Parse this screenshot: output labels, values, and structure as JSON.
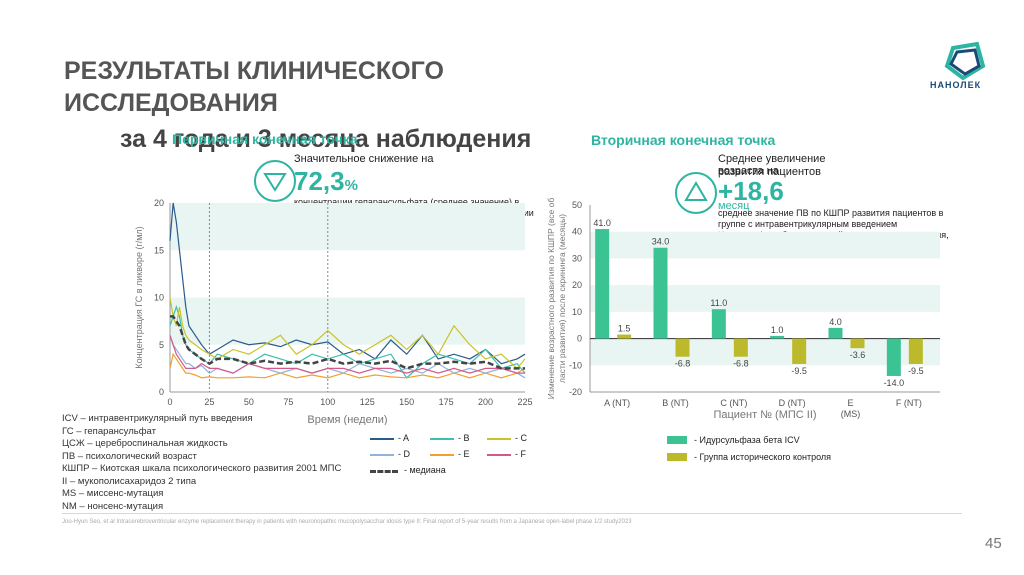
{
  "slide": {
    "title_line1": "РЕЗУЛЬТАТЫ КЛИНИЧЕСКОГО",
    "title_line2": "ИССЛЕДОВАНИЯ",
    "title_line3": "за 4 года и 3 месяца наблюдения",
    "logo_text": "НАНОЛЕК",
    "page_number": "45",
    "footer": "Joo-Hyun Seo, et al Intracerebroventricular enzyme replacement therapy in patients with neuronopathic mucopolysacchar idosis type II: Final report of 5-year results from a Japanese open-label phase 1/2 study2023"
  },
  "primary": {
    "heading": "Первичная конечная точка",
    "subhead": "Значительное снижение на",
    "value": "72,3",
    "unit": "%",
    "description": "концентрации гепарансульфата (среднее значение) в цереброспинальной жидкости от исходной концентрации у всех пациентов на фоне интравентрикулярного введения препарата Идурсульфаза бета"
  },
  "secondary": {
    "heading": "Вторичная конечная точка",
    "subhead": "Среднее увеличение возраста на",
    "subhead2": "развития пациентов",
    "value": "+18,6",
    "unit": "месяц",
    "description": "среднее значение ПВ по КШПР развития пациентов в группе с интравентрикулярным введением Идурсульфаза бета и группой исторического контроля, которые получали Идурсульфазу только в/в"
  },
  "abbreviations": [
    "ICV – интравентрикулярный путь введения",
    "ГС – гепарансульфат",
    "ЦСЖ – цереброспинальная жидкость",
    "ПВ – психологический возраст",
    "КШПР – Киотская шкала психологического развития 2001 МПС",
    "II – мукополисахаридоз 2 типа",
    "MS – миссенс-мутация",
    "NM – нонсенс-мутация"
  ],
  "line_legend": [
    {
      "label": "- A",
      "color": "#2b5a8c",
      "dash": false
    },
    {
      "label": "- B",
      "color": "#3bbfae",
      "dash": false
    },
    {
      "label": "- C",
      "color": "#c9c32a",
      "dash": false
    },
    {
      "label": "- D",
      "color": "#8fb3d9",
      "dash": false
    },
    {
      "label": "- E",
      "color": "#f0a030",
      "dash": false
    },
    {
      "label": "- F",
      "color": "#d25a8a",
      "dash": false
    },
    {
      "label": "- медиана",
      "color": "#444444",
      "dash": true
    }
  ],
  "bar_legend": [
    {
      "label": "- Идурсульфаза бета ICV",
      "color": "#3cc394"
    },
    {
      "label": "- Группа исторического контроля",
      "color": "#bcb92a"
    }
  ],
  "chart_data": [
    {
      "type": "line",
      "xlabel": "Время (недели)",
      "ylabel": "Концентрация ГС в ликворе (г/мл)",
      "xlim": [
        0,
        225
      ],
      "ylim": [
        0,
        20
      ],
      "xticks": [
        0,
        25,
        50,
        75,
        100,
        125,
        150,
        175,
        200,
        225
      ],
      "yticks": [
        0,
        5,
        10,
        15,
        20
      ],
      "x": [
        0,
        2,
        4,
        6,
        8,
        10,
        12,
        16,
        20,
        25,
        30,
        40,
        50,
        60,
        70,
        80,
        90,
        100,
        110,
        120,
        130,
        140,
        150,
        160,
        170,
        180,
        190,
        200,
        210,
        220,
        225
      ],
      "series": [
        {
          "name": "A",
          "color": "#2b5a8c",
          "values": [
            16,
            20,
            18,
            15,
            12,
            9,
            7,
            6,
            5,
            4,
            4.5,
            5.5,
            5,
            5.2,
            4.8,
            5.5,
            5,
            5.3,
            4,
            4.5,
            3.5,
            5.5,
            4,
            6,
            3.5,
            4,
            3.5,
            4.5,
            3,
            3.5,
            4
          ]
        },
        {
          "name": "B",
          "color": "#3bbfae",
          "values": [
            7,
            8,
            9,
            8,
            6,
            5,
            4.5,
            4,
            3.5,
            3,
            4,
            3.5,
            3,
            4,
            3.5,
            3,
            4,
            3.5,
            4,
            3,
            3.5,
            4,
            1.5,
            3,
            4,
            3.5,
            3,
            4.5,
            2.5,
            3,
            2
          ]
        },
        {
          "name": "C",
          "color": "#c9c32a",
          "values": [
            10,
            8,
            7,
            9,
            7,
            6,
            5.5,
            5,
            4.5,
            4,
            3.5,
            4.5,
            4,
            5,
            6,
            4,
            5,
            6.5,
            5,
            4,
            5,
            6,
            4.5,
            6,
            4,
            7,
            5,
            3.5,
            4,
            2.5,
            3.5
          ]
        },
        {
          "name": "D",
          "color": "#8fb3d9",
          "values": [
            6,
            5,
            4.5,
            4,
            3.5,
            3,
            3,
            2.5,
            2.8,
            2,
            2.5,
            2,
            3,
            2.5,
            2,
            2.5,
            2,
            2.5,
            2,
            3,
            2.5,
            2,
            2.5,
            2,
            3,
            2,
            2.5,
            2,
            2.5,
            2,
            1.5
          ]
        },
        {
          "name": "E",
          "color": "#f0a030",
          "values": [
            2.5,
            4,
            3.5,
            3,
            2.5,
            2,
            2,
            1.8,
            1.5,
            1.6,
            1.5,
            1.5,
            1.6,
            1.5,
            2,
            1.5,
            1.8,
            1.5,
            2,
            1.5,
            1.8,
            1.6,
            1.5,
            1.8,
            1.5,
            2,
            1.5,
            2,
            1.5,
            2,
            2.5
          ]
        },
        {
          "name": "F",
          "color": "#d25a8a",
          "values": [
            6,
            5,
            4,
            3.5,
            3,
            2.5,
            2.5,
            2.5,
            3,
            2.5,
            2.5,
            2,
            3,
            2.5,
            2.5,
            2.5,
            2,
            2.5,
            2.5,
            2,
            2.5,
            2.5,
            2,
            2.5,
            2,
            2.5,
            2,
            2.5,
            2.5,
            2,
            2
          ]
        },
        {
          "name": "медиана",
          "color": "#444444",
          "values": [
            8,
            8,
            7.5,
            7,
            6,
            5,
            4.5,
            4,
            3.5,
            3,
            3.5,
            3.5,
            3,
            3.3,
            3,
            3.2,
            3,
            3.5,
            3,
            3.2,
            3,
            3.3,
            2.5,
            3,
            3,
            3.2,
            3,
            3.2,
            2.5,
            2.5,
            2.5
          ]
        }
      ]
    },
    {
      "type": "bar",
      "xlabel": "Пациент № (МПС II)",
      "ylabel": "Изменение возрастного развития по КШПР (все области развития) после скрининга (месяцы)",
      "ylim": [
        -20,
        50
      ],
      "yticks": [
        -20,
        -10,
        0,
        10,
        20,
        30,
        40,
        50
      ],
      "categories": [
        "A (NT)",
        "B (NT)",
        "C (NT)",
        "D (NT)",
        "E",
        "F (NT)"
      ],
      "category_sub": [
        "",
        "",
        "",
        "",
        "(MS)",
        ""
      ],
      "series": [
        {
          "name": "Идурсульфаза бета ICV",
          "color": "#3cc394",
          "values": [
            41.0,
            34.0,
            11.0,
            1.0,
            4.0,
            -14.0
          ]
        },
        {
          "name": "Группа исторического контроля",
          "color": "#bcb92a",
          "values": [
            1.5,
            -6.8,
            -6.8,
            -9.5,
            -3.6,
            -9.5
          ]
        }
      ]
    }
  ]
}
